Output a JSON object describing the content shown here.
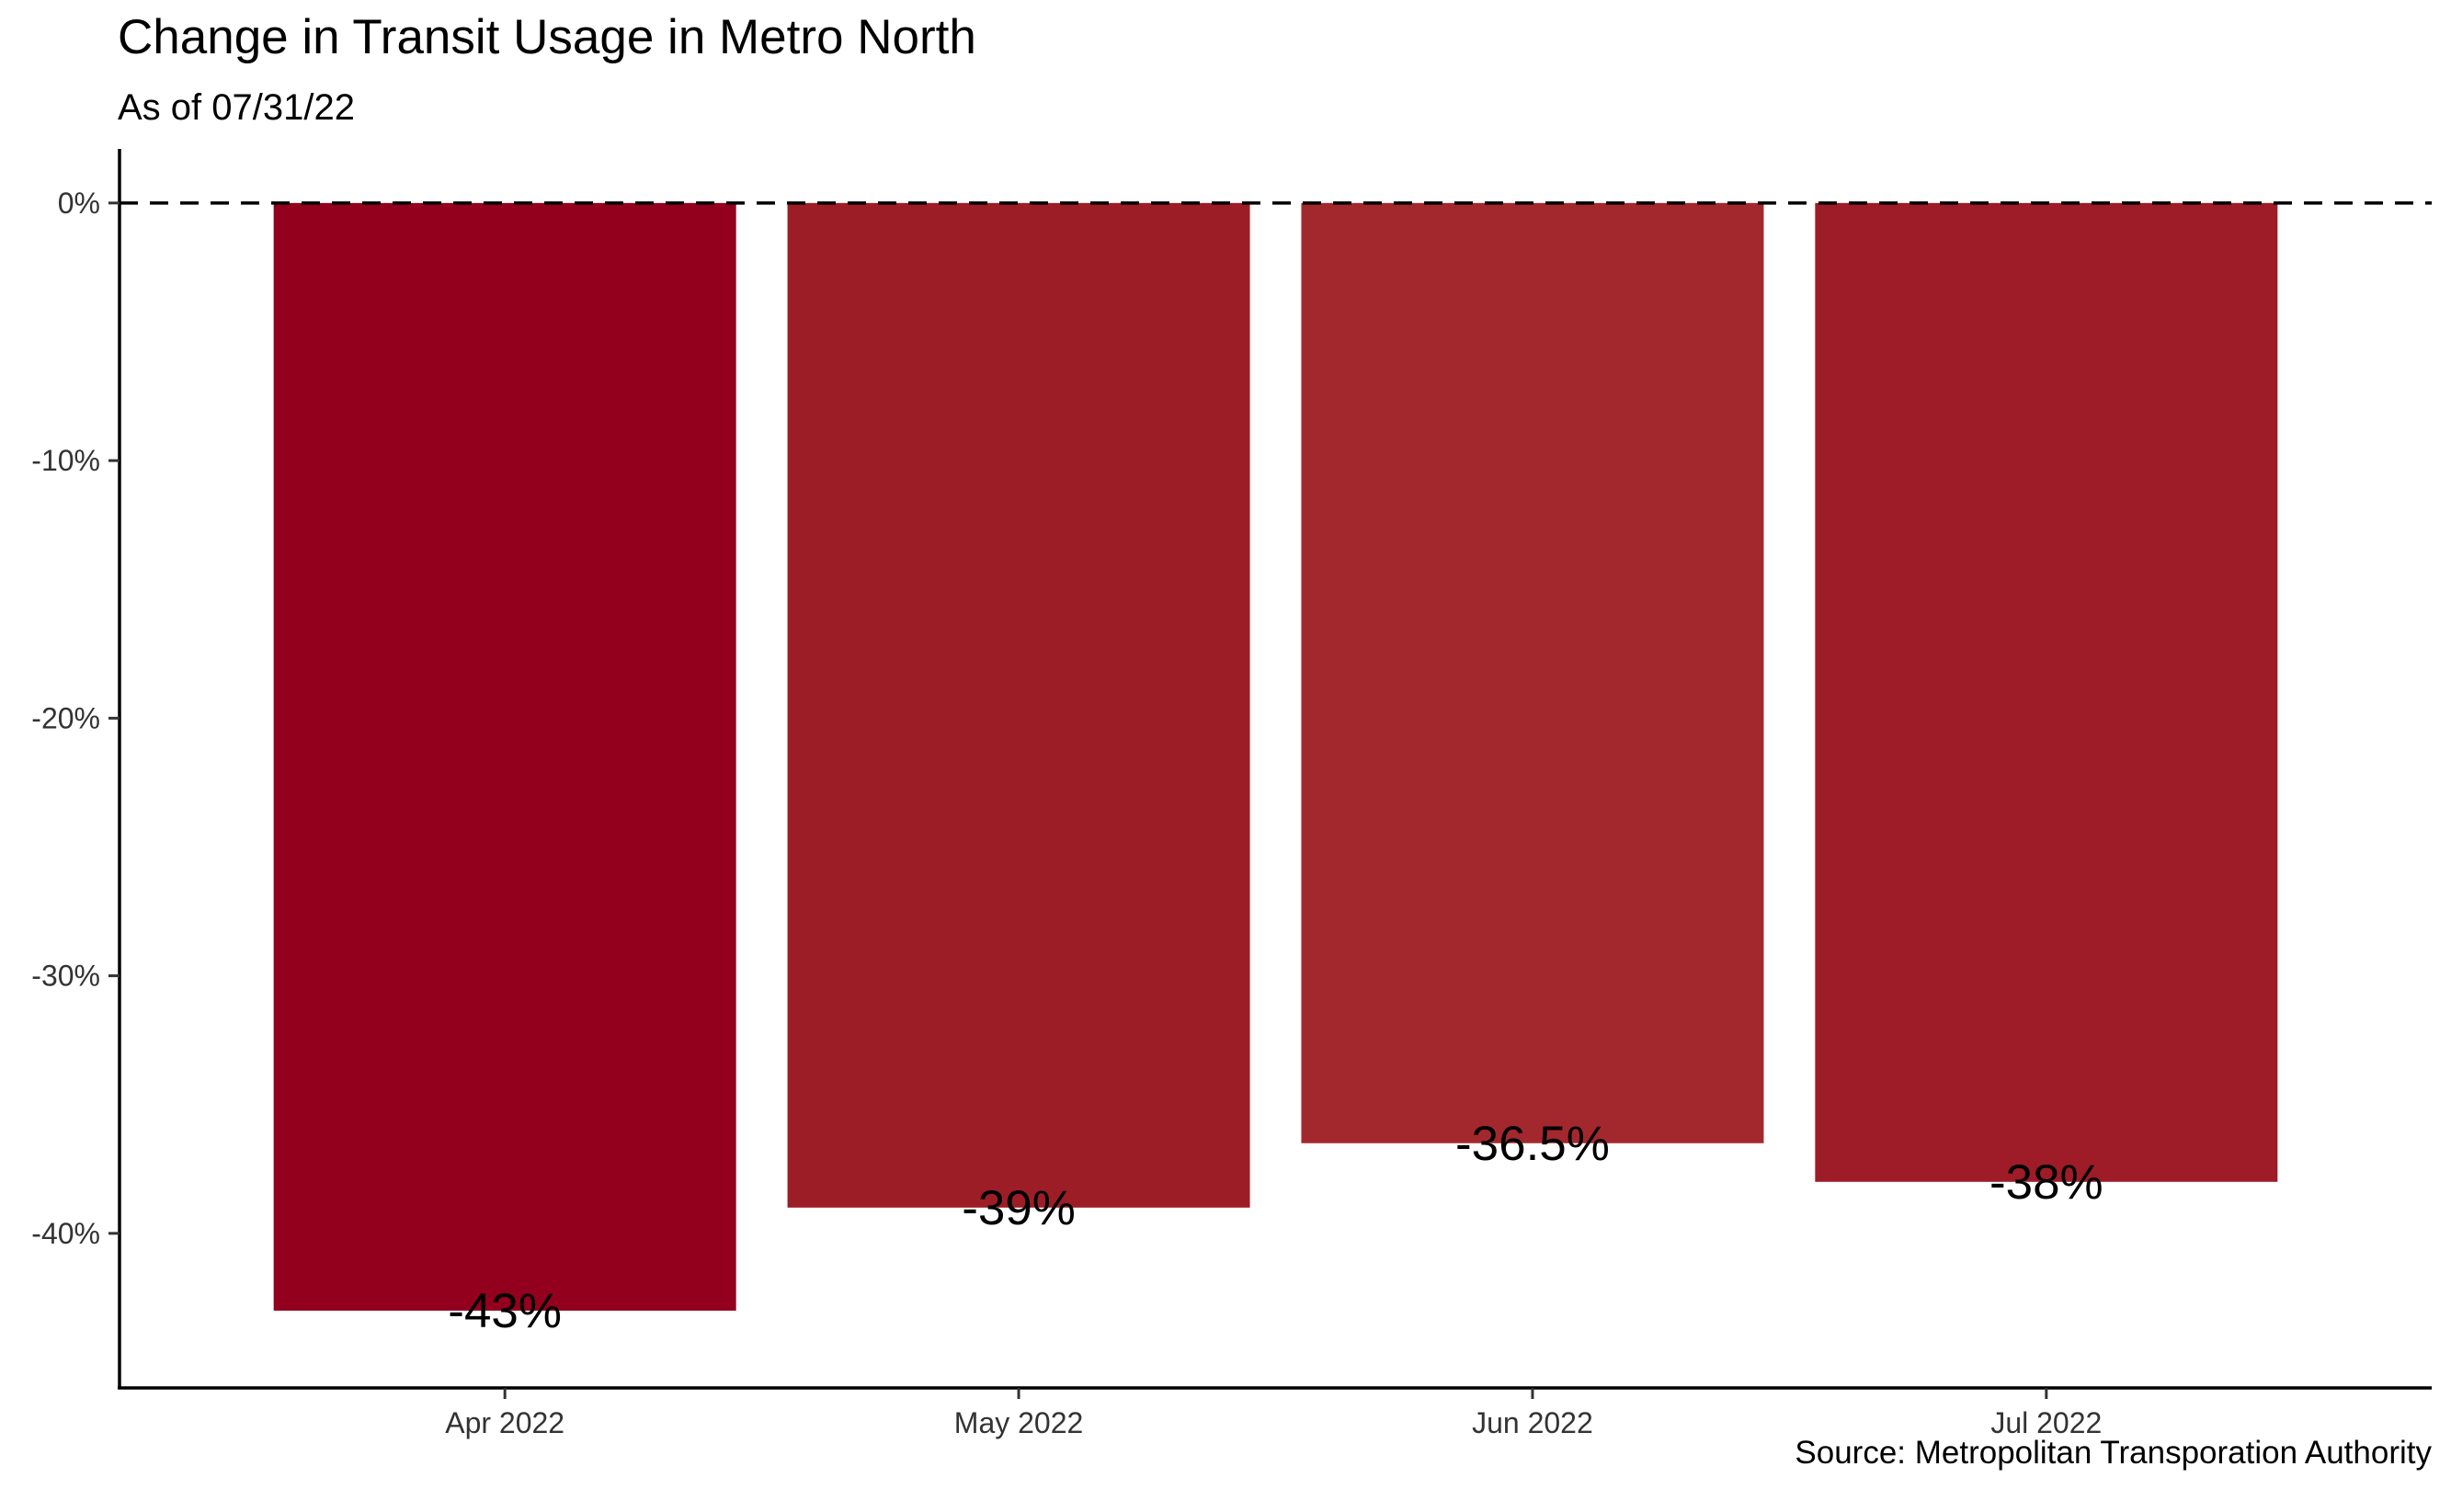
{
  "chart_data": {
    "type": "bar",
    "title": "Change in Transit Usage in Metro North",
    "subtitle": "As of 07/31/22",
    "caption": "Source: Metropolitan Transporation Authority",
    "xlabel": "",
    "ylabel": "",
    "categories": [
      "Apr 2022",
      "May 2022",
      "Jun 2022",
      "Jul 2022"
    ],
    "values": [
      -43,
      -39,
      -36.5,
      -38
    ],
    "value_labels": [
      "-43%",
      "-39%",
      "-36.5%",
      "-38%"
    ],
    "bar_colors": [
      "#93001e",
      "#9d1d27",
      "#a3282d",
      "#9d1c27"
    ],
    "yticks": [
      0,
      -10,
      -20,
      -30,
      -40
    ],
    "ytick_labels": [
      "0%",
      "-10%",
      "-20%",
      "-30%",
      "-40%"
    ],
    "ylim": [
      -46,
      2.1
    ],
    "reference_line": {
      "y": 0,
      "style": "dashed"
    },
    "grid": false,
    "legend": "none"
  }
}
